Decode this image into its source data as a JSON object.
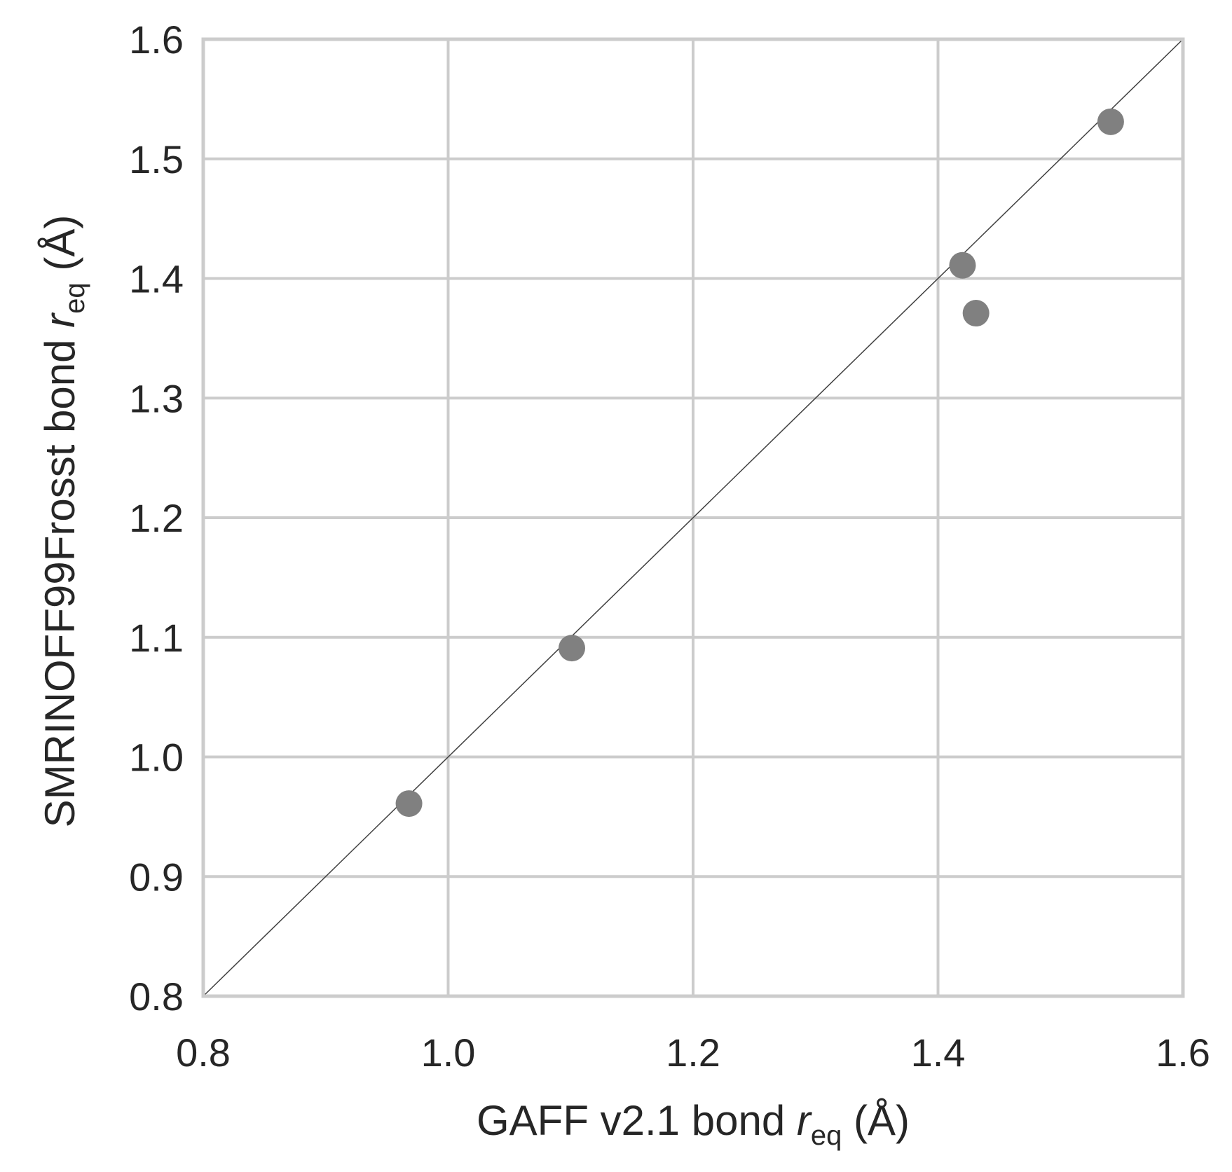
{
  "chart_data": {
    "type": "scatter",
    "title": "",
    "xlabel": {
      "prefix": "GAFF v2.1 bond ",
      "var": "r",
      "sub": "eq",
      "suffix": " (Å)"
    },
    "ylabel": {
      "prefix": "SMRINOFF99Frosst bond ",
      "var": "r",
      "sub": "eq",
      "suffix": " (Å)"
    },
    "xlim": [
      0.8,
      1.6
    ],
    "ylim": [
      0.8,
      1.6
    ],
    "xticks": [
      "0.8",
      "1.0",
      "1.2",
      "1.4",
      "1.6"
    ],
    "yticks": [
      "0.8",
      "0.9",
      "1.0",
      "1.1",
      "1.2",
      "1.3",
      "1.4",
      "1.5",
      "1.6"
    ],
    "grid": true,
    "reference_line": "y = x",
    "series": [
      {
        "points": [
          {
            "x": 0.968,
            "y": 0.961
          },
          {
            "x": 1.101,
            "y": 1.091
          },
          {
            "x": 1.42,
            "y": 1.411
          },
          {
            "x": 1.431,
            "y": 1.371
          },
          {
            "x": 1.541,
            "y": 1.531
          }
        ]
      }
    ],
    "colors": {
      "points": "#808080",
      "grid": "#cccccc",
      "reference_line": "#404040",
      "text": "#262626",
      "background": "#ffffff"
    }
  }
}
